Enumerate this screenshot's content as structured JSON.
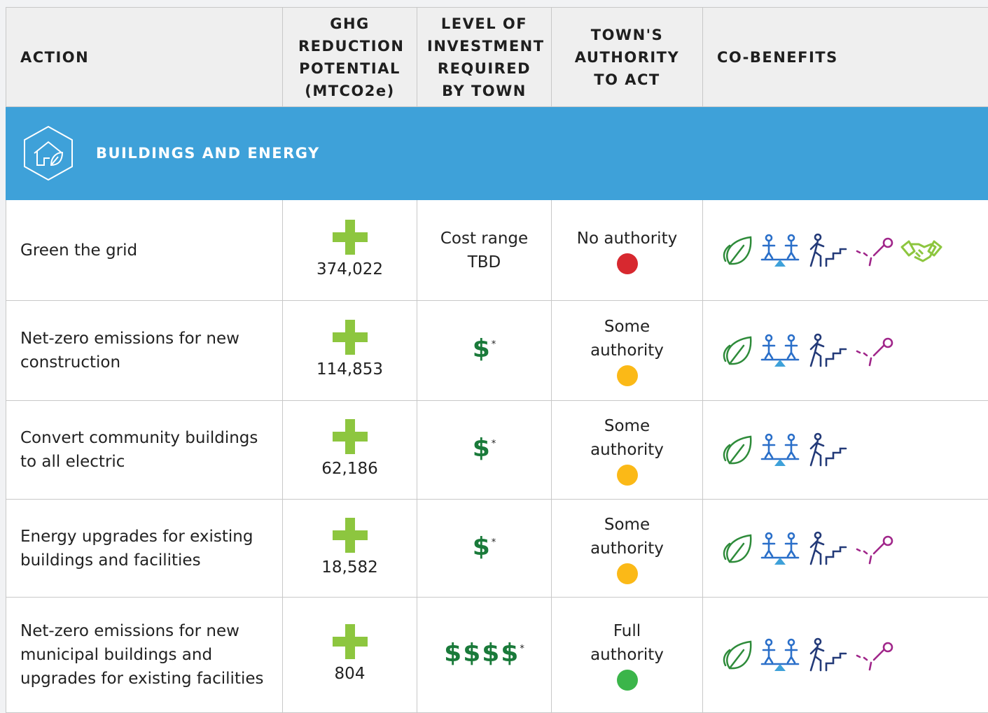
{
  "header": {
    "columns": [
      "ACTION",
      "GHG REDUCTION POTENTIAL (MTCO2e)",
      "LEVEL OF INVESTMENT REQUIRED BY TOWN",
      "TOWN'S AUTHORITY TO ACT",
      "CO-BENEFITS"
    ]
  },
  "section": {
    "title": "BUILDINGS AND ENERGY"
  },
  "rows": [
    {
      "action": "Green the grid",
      "ghg": "374,022",
      "investment": "Cost range TBD",
      "authority": "No authority",
      "status_color": "#d7282f"
    },
    {
      "action": "Net-zero emissions for new construction",
      "ghg": "114,853",
      "investment": "$",
      "note": "*",
      "authority": "Some authority",
      "status_color": "#fbb917"
    },
    {
      "action": "Convert community buildings to all electric",
      "ghg": "62,186",
      "investment": "$",
      "note": "*",
      "authority": "Some authority",
      "status_color": "#fbb917"
    },
    {
      "action": "Energy upgrades for existing buildings and facilities",
      "ghg": "18,582",
      "investment": "$",
      "note": "*",
      "authority": "Some authority",
      "status_color": "#fbb917"
    },
    {
      "action": "Net-zero emissions for new municipal buildings and upgrades for existing facilities",
      "ghg": "804",
      "investment": "$$$$",
      "note": "*",
      "authority": "Full authority",
      "status_color": "#3bb54a"
    }
  ]
}
